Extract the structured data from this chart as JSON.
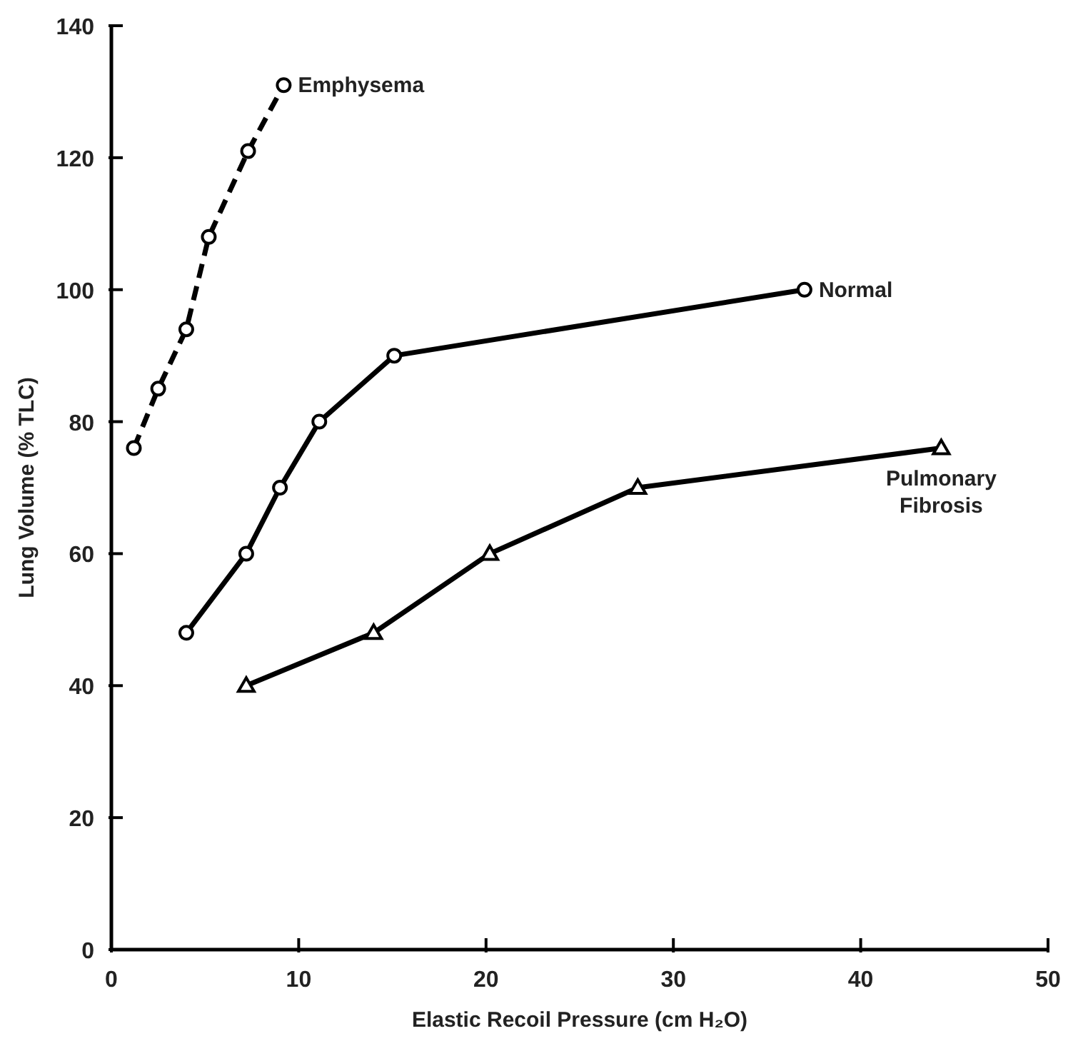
{
  "chart_data": {
    "type": "line",
    "xlabel": "Elastic Recoil Pressure (cm  H₂O)",
    "ylabel": "Lung Volume (% TLC)",
    "xlim": [
      0,
      50
    ],
    "xticks": [
      0,
      10,
      20,
      30,
      40,
      50
    ],
    "ylim": [
      0,
      140
    ],
    "yticks": [
      0,
      20,
      40,
      60,
      80,
      100,
      120,
      140
    ],
    "grid": false,
    "series": [
      {
        "name": "Emphysema",
        "color": "#000000",
        "marker": "circle",
        "line_style": "dashed",
        "x": [
          1.2,
          2.5,
          4.0,
          5.2,
          7.3,
          9.2
        ],
        "values": [
          76,
          85,
          94,
          108,
          121,
          131
        ]
      },
      {
        "name": "Normal",
        "color": "#000000",
        "marker": "circle",
        "line_style": "solid",
        "x": [
          4.0,
          7.2,
          9.0,
          11.1,
          15.1,
          37
        ],
        "values": [
          48,
          60,
          70,
          80,
          90,
          100
        ]
      },
      {
        "name": "Pulmonary Fibrosis",
        "color": "#000000",
        "marker": "triangle",
        "line_style": "solid",
        "x": [
          7.2,
          14.0,
          20.2,
          28.1,
          44.3
        ],
        "values": [
          40,
          48,
          60,
          70,
          76
        ]
      }
    ]
  }
}
